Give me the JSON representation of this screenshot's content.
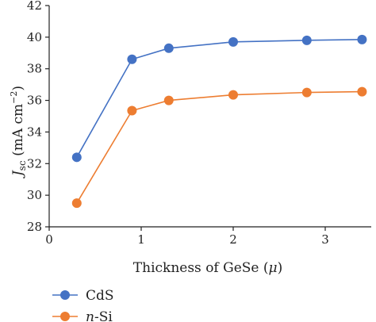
{
  "chart_data": {
    "type": "line",
    "xlabel_text": "Thickness of GeSe (",
    "xlabel_mu": "μ",
    "xlabel_close": ")",
    "ylabel_j": "J",
    "ylabel_sub": "sc",
    "ylabel_units": " (mA cm",
    "ylabel_sup": "−2",
    "ylabel_close": ")",
    "xlim": [
      0,
      3.5
    ],
    "ylim": [
      28,
      42
    ],
    "xticks": [
      0,
      1,
      2,
      3
    ],
    "yticks": [
      28,
      30,
      32,
      34,
      36,
      38,
      40,
      42
    ],
    "grid": false,
    "legend_position": "bottom-left",
    "series": [
      {
        "name": "CdS",
        "color": "#4472C4",
        "x": [
          0.3,
          0.9,
          1.3,
          2.0,
          2.8,
          3.4
        ],
        "y": [
          32.4,
          38.6,
          39.3,
          39.7,
          39.8,
          39.85
        ]
      },
      {
        "name_italic": "n",
        "name_rest": "-Si",
        "color": "#ED7D31",
        "x": [
          0.3,
          0.9,
          1.3,
          2.0,
          2.8,
          3.4
        ],
        "y": [
          29.5,
          35.35,
          36.0,
          36.35,
          36.5,
          36.55
        ]
      }
    ]
  }
}
